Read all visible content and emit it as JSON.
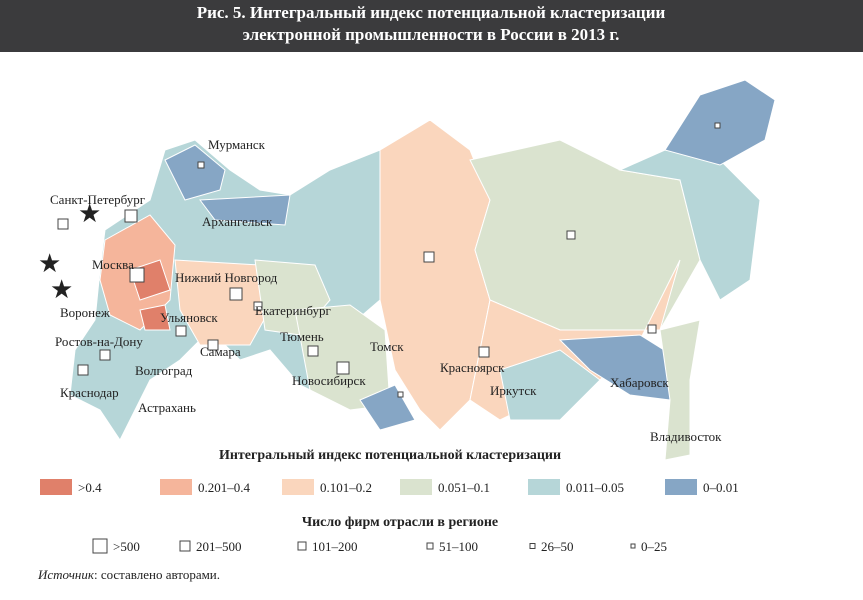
{
  "header": {
    "title_line1": "Рис. 5.  Интегральный индекс потенциальной кластеризации",
    "title_line2": "электронной промышленности в России в 2013 г."
  },
  "map": {
    "cities": [
      "Мурманск",
      "Санкт-Петербург",
      "Архангельск",
      "Москва",
      "Нижний Новгород",
      "Воронеж",
      "Екатеринбург",
      "Ульяновск",
      "Тюмень",
      "Ростов-на-Дону",
      "Самара",
      "Томск",
      "Новосибирск",
      "Красноярск",
      "Волгоград",
      "Иркутск",
      "Хабаровск",
      "Краснодар",
      "Астрахань",
      "Владивосток"
    ]
  },
  "legend_index": {
    "title": "Интегральный индекс потенциальной кластеризации",
    "items": [
      {
        "label": ">0.4",
        "color": "#e0806a"
      },
      {
        "label": "0.201–0.4",
        "color": "#f5b59b"
      },
      {
        "label": "0.101–0.2",
        "color": "#fad6bd"
      },
      {
        "label": "0.051–0.1",
        "color": "#dae3cf"
      },
      {
        "label": "0.011–0.05",
        "color": "#b6d6d8"
      },
      {
        "label": "0–0.01",
        "color": "#86a6c5"
      }
    ]
  },
  "legend_firms": {
    "title": "Число фирм отрасли в регионе",
    "items": [
      ">500",
      "201–500",
      "101–200",
      "51–100",
      "26–50",
      "0–25"
    ]
  },
  "source": {
    "label": "Источник",
    "text": ": составлено авторами."
  }
}
